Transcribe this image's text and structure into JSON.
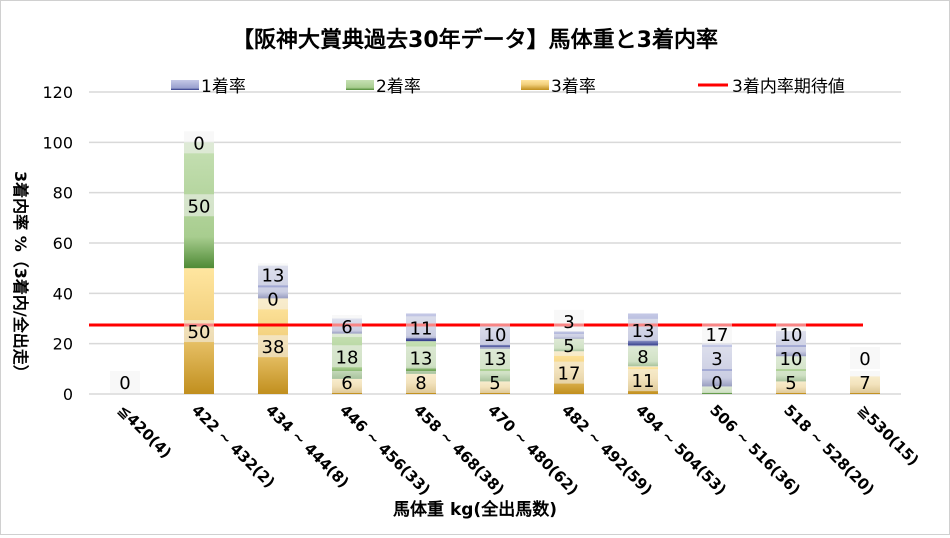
{
  "chart_data": {
    "type": "bar",
    "stacked": true,
    "title": "【阪神大賞典過去30年データ】馬体重と3着内率",
    "xlabel": "馬体重 kg(全出馬数)",
    "ylabel": "3着内率 %（3着内/全出走）",
    "ylim": [
      0,
      120
    ],
    "yticks": [
      0,
      20,
      40,
      60,
      80,
      100,
      120
    ],
    "grid": true,
    "legend_position": "top",
    "categories": [
      "≦420(4)",
      "422 ~ 432(2)",
      "434 ~ 444(8)",
      "446 ~ 456(33)",
      "458 ~ 468(38)",
      "470 ~ 480(62)",
      "482 ~ 492(59)",
      "494 ~ 504(53)",
      "506 ~ 516(36)",
      "518 ~ 528(20)",
      "≧530(15)"
    ],
    "series": [
      {
        "name": "3着率",
        "color": "#d4a437",
        "values": [
          0,
          50,
          38,
          6,
          8,
          5,
          17,
          11,
          0,
          5,
          7
        ]
      },
      {
        "name": "2着率",
        "color": "#6fa257",
        "values": [
          0,
          50,
          0,
          18,
          13,
          13,
          5,
          8,
          3,
          10,
          0
        ]
      },
      {
        "name": "1着率",
        "color": "#5a66a8",
        "values": [
          0,
          0,
          13,
          6,
          11,
          10,
          3,
          13,
          17,
          10,
          0
        ]
      }
    ],
    "reference_line": {
      "name": "3着内率期待値",
      "color": "#ff0000",
      "value": 27.4
    },
    "legend_order": [
      "1着率",
      "2着率",
      "3着率",
      "3着内率期待値"
    ]
  }
}
